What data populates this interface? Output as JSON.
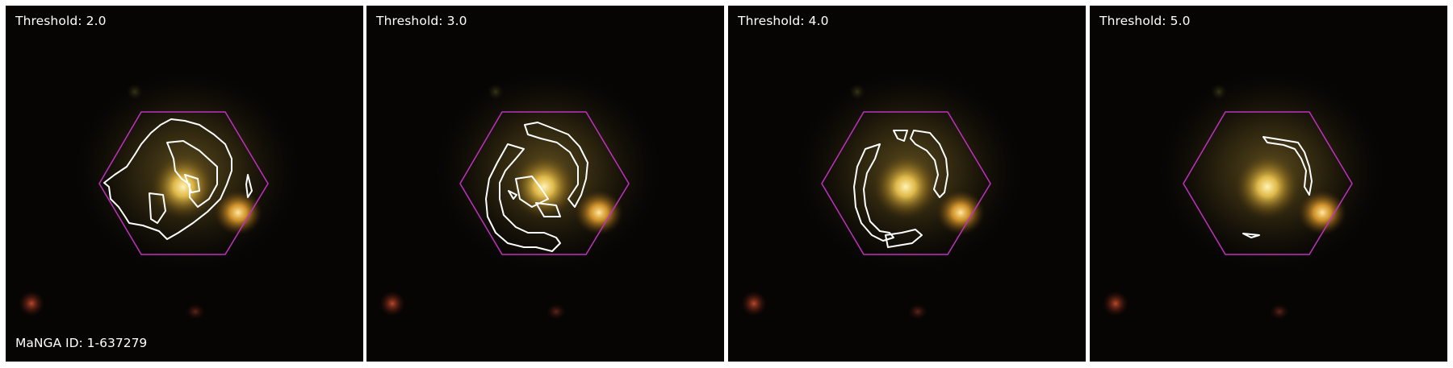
{
  "panels": [
    {
      "label": "Threshold: 2.0"
    },
    {
      "label": "Threshold: 3.0"
    },
    {
      "label": "Threshold: 4.0"
    },
    {
      "label": "Threshold: 5.0"
    }
  ],
  "manga_id": "MaNGA ID: 1-637279",
  "colors": {
    "hexagon": "#c030c0",
    "contour": "#ffffff",
    "background": "#050403"
  }
}
